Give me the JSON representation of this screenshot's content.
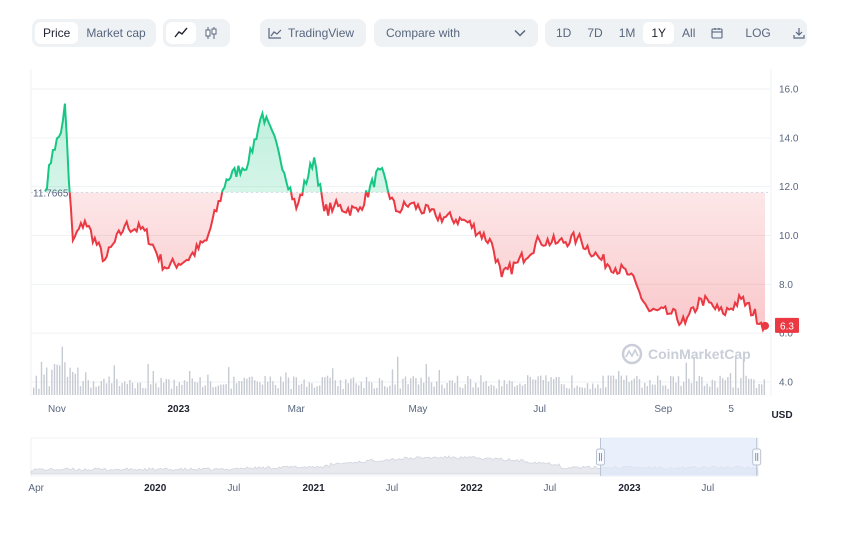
{
  "toolbar": {
    "price_label": "Price",
    "market_cap_label": "Market cap",
    "tradingview_label": "TradingView",
    "compare_label": "Compare with",
    "ranges": [
      "1D",
      "7D",
      "1M",
      "1Y",
      "All"
    ],
    "active_range": "1Y",
    "log_label": "LOG"
  },
  "watermark": "CoinMarketCap",
  "currency_label": "USD",
  "colors": {
    "up": "#16c784",
    "down": "#ea3943",
    "grid": "#eff2f5",
    "navigator_shade": "#e3ecfb"
  },
  "chart_data": {
    "type": "area",
    "reference_price": "11.7665",
    "last_price": "6.3",
    "y_ticks": [
      "16.0",
      "14.0",
      "12.0",
      "10.0",
      "8.0",
      "6.0",
      "4.0"
    ],
    "ylim": [
      4.0,
      16.0
    ],
    "x_ticks": [
      "Nov",
      "2023",
      "Mar",
      "May",
      "Jul",
      "Sep",
      "5"
    ],
    "x": [
      "2022-10-26",
      "2022-10-30",
      "2022-11-03",
      "2022-11-05",
      "2022-11-07",
      "2022-11-09",
      "2022-11-15",
      "2022-11-25",
      "2022-12-05",
      "2022-12-15",
      "2022-12-25",
      "2023-01-05",
      "2023-01-15",
      "2023-01-25",
      "2023-02-05",
      "2023-02-12",
      "2023-02-20",
      "2023-03-01",
      "2023-03-10",
      "2023-03-15",
      "2023-03-20",
      "2023-04-01",
      "2023-04-12",
      "2023-04-20",
      "2023-04-27",
      "2023-05-10",
      "2023-05-25",
      "2023-06-07",
      "2023-06-12",
      "2023-06-20",
      "2023-07-01",
      "2023-07-10",
      "2023-07-20",
      "2023-08-01",
      "2023-08-15",
      "2023-08-25",
      "2023-09-05",
      "2023-09-12",
      "2023-09-20",
      "2023-10-01",
      "2023-10-10",
      "2023-10-22"
    ],
    "y": [
      11.8,
      13.5,
      14.2,
      15.4,
      12.2,
      9.8,
      10.6,
      9.0,
      10.4,
      10.2,
      8.7,
      9.0,
      9.8,
      12.3,
      13.0,
      15.0,
      13.5,
      11.1,
      13.2,
      11.0,
      11.2,
      11.0,
      12.7,
      11.0,
      11.3,
      10.8,
      10.6,
      9.7,
      8.3,
      8.9,
      9.8,
      9.7,
      9.9,
      9.0,
      8.4,
      6.9,
      6.8,
      6.4,
      7.4,
      6.8,
      7.4,
      6.3
    ],
    "volume_label": "Volume",
    "navigator": {
      "x_ticks": [
        "Apr",
        "2020",
        "Jul",
        "2021",
        "Jul",
        "2022",
        "Jul",
        "2023",
        "Jul"
      ],
      "selected_range": [
        "2022-10-26",
        "2023-10-22"
      ]
    }
  }
}
